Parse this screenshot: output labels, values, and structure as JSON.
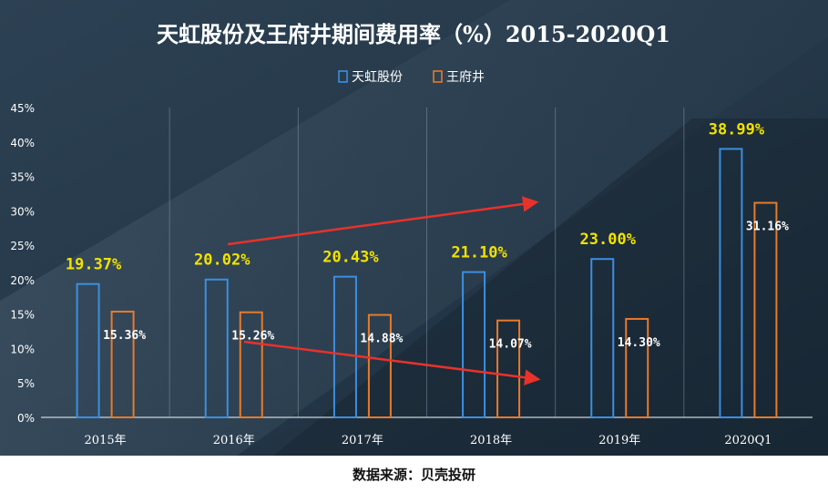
{
  "chart_data": {
    "type": "bar",
    "title": "天虹股份及王府井期间费用率（%）2015-2020Q1",
    "categories": [
      "2015年",
      "2016年",
      "2017年",
      "2018年",
      "2019年",
      "2020Q1"
    ],
    "series": [
      {
        "name": "天虹股份",
        "values": [
          19.37,
          20.02,
          20.43,
          21.1,
          23.0,
          38.99
        ],
        "labels": [
          "19.37%",
          "20.02%",
          "20.43%",
          "21.10%",
          "23.00%",
          "38.99%"
        ],
        "color": "#3b8fe0"
      },
      {
        "name": "王府井",
        "values": [
          15.36,
          15.26,
          14.88,
          14.07,
          14.3,
          31.16
        ],
        "labels": [
          "15.36%",
          "15.26%",
          "14.88%",
          "14.07%",
          "14.30%",
          "31.16%"
        ],
        "color": "#e87a2a"
      }
    ],
    "ylim": [
      0,
      45
    ],
    "yticks": [
      "0%",
      "5%",
      "10%",
      "15%",
      "20%",
      "25%",
      "30%",
      "35%",
      "40%",
      "45%"
    ],
    "grid": "vertical separators",
    "legend_position": "top-center",
    "annotations": [
      {
        "type": "arrow",
        "direction": "up",
        "color": "#e8322a"
      },
      {
        "type": "arrow",
        "direction": "down",
        "color": "#e8322a"
      }
    ]
  },
  "source": "数据来源：贝壳投研",
  "colors": {
    "background_dark": "#1b2d3c",
    "background_light": "#4b6072",
    "label_yellow": "#f2e200",
    "label_white": "#ffffff",
    "axis_text": "#ffffff"
  }
}
